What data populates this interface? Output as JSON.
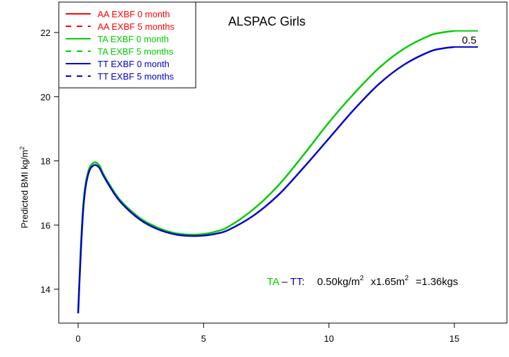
{
  "chart_data": {
    "type": "line",
    "title": "ALSPAC Girls",
    "ylabel_main": "Predicted BMI kg/m",
    "ylabel_sup": "2",
    "xlabel": "",
    "xlim": [
      0,
      15
    ],
    "ylim": [
      13,
      22.5
    ],
    "xticks": [
      0,
      5,
      10,
      15
    ],
    "yticks": [
      14,
      16,
      18,
      20,
      22
    ],
    "grid": false,
    "legend_position": "top-left",
    "legend": [
      {
        "label": "AA EXBF 0 month",
        "color": "#ff0000",
        "dash": "solid"
      },
      {
        "label": "AA EXBF 5 months",
        "color": "#ff0000",
        "dash": "dashed"
      },
      {
        "label": "TA EXBF 0 month",
        "color": "#00cc00",
        "dash": "solid"
      },
      {
        "label": "TA EXBF 5 months",
        "color": "#00cc00",
        "dash": "dashed"
      },
      {
        "label": "TT EXBF 0 month",
        "color": "#0000cc",
        "dash": "solid"
      },
      {
        "label": "TT EXBF 5 months",
        "color": "#0000cc",
        "dash": "dashed"
      }
    ],
    "series": [
      {
        "color": "#00cc00",
        "x": [
          0,
          0.1,
          0.2,
          0.3,
          0.45,
          0.6,
          0.7,
          0.85,
          1.0,
          1.3,
          1.6,
          2.0,
          2.5,
          3.0,
          3.5,
          4.0,
          4.5,
          5.0,
          5.5,
          6.0,
          7.0,
          8.0,
          9.0,
          10.0,
          11.0,
          12.0,
          13.0,
          14.0,
          14.5,
          15.0
        ],
        "y": [
          13.25,
          15.2,
          16.6,
          17.3,
          17.78,
          17.93,
          17.95,
          17.85,
          17.6,
          17.2,
          16.85,
          16.52,
          16.2,
          15.98,
          15.82,
          15.73,
          15.7,
          15.72,
          15.8,
          15.95,
          16.5,
          17.25,
          18.2,
          19.2,
          20.1,
          20.9,
          21.5,
          21.9,
          22.0,
          22.05
        ]
      },
      {
        "color": "#0000cc",
        "x": [
          0,
          0.1,
          0.2,
          0.3,
          0.45,
          0.6,
          0.7,
          0.85,
          1.0,
          1.3,
          1.6,
          2.0,
          2.5,
          3.0,
          3.5,
          4.0,
          4.5,
          5.0,
          5.5,
          6.0,
          7.0,
          8.0,
          9.0,
          10.0,
          11.0,
          12.0,
          13.0,
          14.0,
          14.5,
          15.0
        ],
        "y": [
          13.25,
          15.05,
          16.45,
          17.2,
          17.7,
          17.85,
          17.87,
          17.78,
          17.55,
          17.15,
          16.8,
          16.47,
          16.15,
          15.93,
          15.78,
          15.69,
          15.66,
          15.67,
          15.73,
          15.85,
          16.3,
          16.95,
          17.8,
          18.7,
          19.6,
          20.4,
          21.0,
          21.4,
          21.5,
          21.55
        ]
      }
    ],
    "end_label": "0.5",
    "annotation": {
      "ta": "TA",
      "dash": "–",
      "tt": "TT",
      "colon": ":",
      "value": "0.50kg/m",
      "value_sup": "2",
      "mult": "x1.65m",
      "mult_sup": "2",
      "result": "=1.36kgs"
    }
  }
}
